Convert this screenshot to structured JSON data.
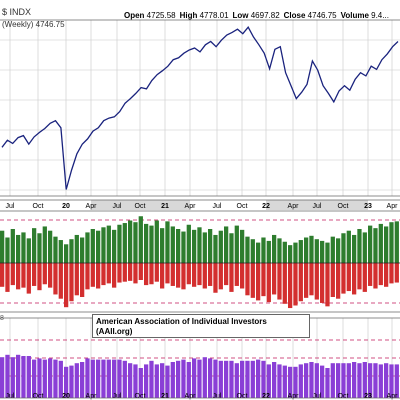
{
  "header": {
    "ticker": "$ INDX",
    "series_label": "(Weekly) 4746.75",
    "ohlc": [
      {
        "label": "Open",
        "value": "4725.58"
      },
      {
        "label": "High",
        "value": "4778.01"
      },
      {
        "label": "Low",
        "value": "4697.82"
      },
      {
        "label": "Close",
        "value": "4746.75"
      },
      {
        "label": "Volume",
        "value": "9.4..."
      }
    ]
  },
  "x_ticks": [
    "Jul",
    "Oct",
    "20",
    "Apr",
    "Jul",
    "Oct",
    "21",
    "Apr",
    "Jul",
    "Oct",
    "22",
    "Apr",
    "Jul",
    "Oct",
    "23",
    "Apr"
  ],
  "lower_panel": {
    "number": "8",
    "source_lines": [
      "American Association of Individual Investors",
      "(AAII.org)"
    ]
  },
  "colors": {
    "price_line": "#1a237e",
    "grid": "#c8c8c8",
    "bull": "#2e7d2e",
    "bear": "#d32f2f",
    "neutral": "#8a3fd6",
    "dashed_ref": "#c2185b",
    "year_band": "#d8d8d8"
  },
  "chart_data": [
    {
      "type": "line",
      "title": "",
      "series": [
        {
          "name": "",
          "values": [
            2950,
            3060,
            3010,
            3100,
            3130,
            3000,
            3110,
            3180,
            3240,
            3320,
            3360,
            3250,
            2300,
            2600,
            2850,
            3000,
            3080,
            3200,
            3250,
            3360,
            3400,
            3420,
            3500,
            3630,
            3700,
            3780,
            3870,
            3850,
            3980,
            4070,
            4130,
            4200,
            4300,
            4330,
            4400,
            4450,
            4480,
            4420,
            4530,
            4580,
            4500,
            4600,
            4680,
            4720,
            4770,
            4700,
            4800,
            4650,
            4530,
            4400,
            4160,
            4460,
            4500,
            4100,
            3900,
            3700,
            3800,
            3920,
            4280,
            4140,
            3900,
            3780,
            3650,
            3820,
            3900,
            3830,
            4000,
            4100,
            4050,
            4200,
            4150,
            4300,
            4390,
            4500,
            4580
          ]
        }
      ],
      "x_ticks": [
        "Jul",
        "Oct",
        "20",
        "Apr",
        "Jul",
        "Oct",
        "21",
        "Apr",
        "Jul",
        "Oct",
        "22",
        "Apr",
        "Jul",
        "Oct",
        "23",
        "Apr"
      ]
    },
    {
      "type": "bar",
      "title": "",
      "series": [
        {
          "name": "",
          "values": [
            38,
            30,
            40,
            33,
            36,
            29,
            41,
            35,
            43,
            38,
            31,
            27,
            22,
            28,
            33,
            30,
            36,
            40,
            38,
            42,
            44,
            39,
            45,
            47,
            50,
            48,
            55,
            46,
            44,
            50,
            41,
            49,
            43,
            40,
            37,
            45,
            39,
            42,
            36,
            40,
            33,
            38,
            43,
            35,
            44,
            39,
            31,
            28,
            24,
            30,
            26,
            33,
            29,
            25,
            21,
            24,
            27,
            30,
            32,
            28,
            26,
            24,
            31,
            29,
            35,
            38,
            33,
            40,
            36,
            44,
            41,
            46,
            43,
            48,
            49
          ]
        },
        {
          "name": "",
          "values": [
            28,
            34,
            26,
            31,
            29,
            36,
            27,
            32,
            25,
            29,
            37,
            42,
            52,
            45,
            38,
            40,
            31,
            28,
            30,
            26,
            24,
            29,
            23,
            22,
            21,
            24,
            20,
            26,
            25,
            22,
            30,
            24,
            27,
            29,
            31,
            25,
            28,
            26,
            30,
            27,
            35,
            31,
            26,
            34,
            27,
            30,
            38,
            41,
            44,
            39,
            46,
            37,
            43,
            48,
            53,
            50,
            45,
            41,
            38,
            43,
            47,
            51,
            40,
            42,
            36,
            33,
            37,
            31,
            34,
            27,
            30,
            26,
            28,
            24,
            23
          ]
        }
      ]
    },
    {
      "type": "bar",
      "title": "",
      "series": [
        {
          "name": "",
          "values": [
            34,
            36,
            34,
            36,
            35,
            35,
            32,
            33,
            32,
            33,
            32,
            31,
            26,
            27,
            29,
            30,
            33,
            32,
            32,
            32,
            32,
            32,
            32,
            31,
            29,
            28,
            25,
            28,
            31,
            28,
            29,
            27,
            30,
            31,
            32,
            30,
            33,
            32,
            34,
            33,
            32,
            31,
            31,
            31,
            29,
            31,
            31,
            31,
            32,
            31,
            28,
            30,
            28,
            27,
            26,
            26,
            28,
            29,
            30,
            29,
            27,
            25,
            29,
            29,
            29,
            29,
            30,
            29,
            30,
            29,
            29,
            28,
            29,
            28,
            28
          ]
        }
      ]
    }
  ]
}
